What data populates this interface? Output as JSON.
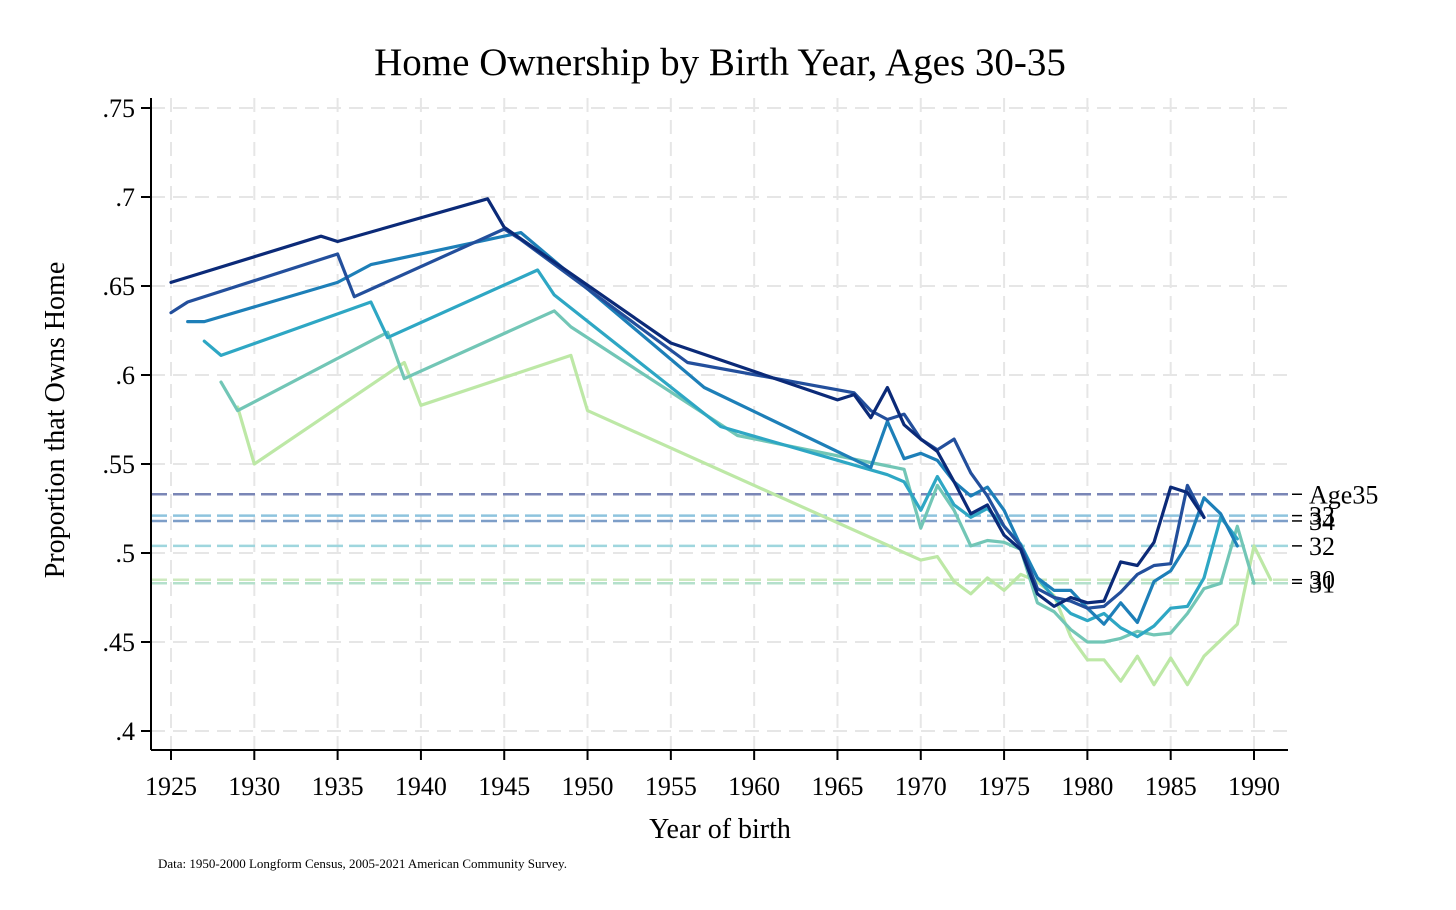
{
  "chart_data": {
    "type": "line",
    "title": "Home Ownership by Birth Year, Ages 30-35",
    "xlabel": "Year of birth",
    "ylabel": "Proportion that Owns Home",
    "note": "Data: 1950-2000 Longform Census, 2005-2021 American Community Survey.",
    "xlim": [
      1925,
      1990
    ],
    "ylim": [
      0.4,
      0.75
    ],
    "x_ticks": [
      1925,
      1930,
      1935,
      1940,
      1945,
      1950,
      1955,
      1960,
      1965,
      1970,
      1975,
      1980,
      1985,
      1990
    ],
    "x_tick_labels": [
      "1925",
      "1930",
      "1935",
      "1940",
      "1945",
      "1950",
      "1955",
      "1960",
      "1965",
      "1970",
      "1975",
      "1980",
      "1985",
      "1990"
    ],
    "y_ticks": [
      0.4,
      0.45,
      0.5,
      0.55,
      0.6,
      0.65,
      0.7,
      0.75
    ],
    "y_tick_labels": [
      ".4",
      ".45",
      ".5",
      ".55",
      ".6",
      ".65",
      ".7",
      ".75"
    ],
    "grid": true,
    "series": [
      {
        "label": "Age35",
        "color": "#0b2a78",
        "reference": 0.533,
        "ref_color": "#7a86b6",
        "points": [
          [
            1925,
            0.652
          ],
          [
            1934,
            0.678
          ],
          [
            1935,
            0.675
          ],
          [
            1944,
            0.699
          ],
          [
            1945,
            0.683
          ],
          [
            1955,
            0.618
          ],
          [
            1965,
            0.586
          ],
          [
            1966,
            0.589
          ],
          [
            1967,
            0.576
          ],
          [
            1968,
            0.593
          ],
          [
            1969,
            0.572
          ],
          [
            1970,
            0.564
          ],
          [
            1971,
            0.557
          ],
          [
            1972,
            0.54
          ],
          [
            1973,
            0.522
          ],
          [
            1974,
            0.527
          ],
          [
            1975,
            0.51
          ],
          [
            1976,
            0.502
          ],
          [
            1977,
            0.477
          ],
          [
            1978,
            0.47
          ],
          [
            1979,
            0.475
          ],
          [
            1980,
            0.472
          ],
          [
            1981,
            0.473
          ],
          [
            1982,
            0.495
          ],
          [
            1983,
            0.493
          ],
          [
            1984,
            0.506
          ],
          [
            1985,
            0.537
          ],
          [
            1986,
            0.534
          ],
          [
            1987,
            0.52
          ]
        ]
      },
      {
        "label": "34",
        "color": "#234f9c",
        "reference": 0.518,
        "ref_color": "#7d9ec8",
        "points": [
          [
            1925,
            0.635
          ],
          [
            1926,
            0.641
          ],
          [
            1935,
            0.668
          ],
          [
            1936,
            0.644
          ],
          [
            1945,
            0.682
          ],
          [
            1946,
            0.676
          ],
          [
            1956,
            0.607
          ],
          [
            1966,
            0.59
          ],
          [
            1967,
            0.58
          ],
          [
            1968,
            0.575
          ],
          [
            1969,
            0.578
          ],
          [
            1970,
            0.564
          ],
          [
            1971,
            0.558
          ],
          [
            1972,
            0.564
          ],
          [
            1973,
            0.545
          ],
          [
            1974,
            0.532
          ],
          [
            1975,
            0.515
          ],
          [
            1976,
            0.504
          ],
          [
            1977,
            0.48
          ],
          [
            1978,
            0.475
          ],
          [
            1979,
            0.473
          ],
          [
            1980,
            0.469
          ],
          [
            1981,
            0.47
          ],
          [
            1982,
            0.478
          ],
          [
            1983,
            0.488
          ],
          [
            1984,
            0.493
          ],
          [
            1985,
            0.494
          ],
          [
            1986,
            0.538
          ],
          [
            1987,
            0.52
          ]
        ]
      },
      {
        "label": "33",
        "color": "#1d7fb8",
        "reference": 0.521,
        "ref_color": "#8ec4de",
        "points": [
          [
            1926,
            0.63
          ],
          [
            1927,
            0.63
          ],
          [
            1935,
            0.652
          ],
          [
            1937,
            0.662
          ],
          [
            1946,
            0.68
          ],
          [
            1957,
            0.593
          ],
          [
            1967,
            0.548
          ],
          [
            1968,
            0.574
          ],
          [
            1969,
            0.553
          ],
          [
            1970,
            0.556
          ],
          [
            1971,
            0.552
          ],
          [
            1972,
            0.54
          ],
          [
            1973,
            0.532
          ],
          [
            1974,
            0.537
          ],
          [
            1975,
            0.524
          ],
          [
            1976,
            0.504
          ],
          [
            1977,
            0.486
          ],
          [
            1978,
            0.479
          ],
          [
            1979,
            0.479
          ],
          [
            1980,
            0.469
          ],
          [
            1981,
            0.46
          ],
          [
            1982,
            0.472
          ],
          [
            1983,
            0.461
          ],
          [
            1984,
            0.484
          ],
          [
            1985,
            0.49
          ],
          [
            1986,
            0.505
          ],
          [
            1987,
            0.531
          ],
          [
            1988,
            0.522
          ],
          [
            1989,
            0.504
          ]
        ]
      },
      {
        "label": "32",
        "color": "#2ea7c4",
        "reference": 0.504,
        "ref_color": "#9fd6de",
        "points": [
          [
            1927,
            0.619
          ],
          [
            1928,
            0.611
          ],
          [
            1937,
            0.641
          ],
          [
            1938,
            0.621
          ],
          [
            1947,
            0.659
          ],
          [
            1948,
            0.645
          ],
          [
            1958,
            0.571
          ],
          [
            1968,
            0.544
          ],
          [
            1969,
            0.54
          ],
          [
            1970,
            0.524
          ],
          [
            1971,
            0.543
          ],
          [
            1972,
            0.527
          ],
          [
            1973,
            0.52
          ],
          [
            1974,
            0.525
          ],
          [
            1975,
            0.515
          ],
          [
            1976,
            0.505
          ],
          [
            1977,
            0.486
          ],
          [
            1978,
            0.475
          ],
          [
            1979,
            0.466
          ],
          [
            1980,
            0.462
          ],
          [
            1981,
            0.466
          ],
          [
            1982,
            0.458
          ],
          [
            1983,
            0.453
          ],
          [
            1984,
            0.459
          ],
          [
            1985,
            0.469
          ],
          [
            1986,
            0.47
          ],
          [
            1987,
            0.486
          ],
          [
            1988,
            0.52
          ],
          [
            1989,
            0.508
          ]
        ]
      },
      {
        "label": "31",
        "color": "#72c6b6",
        "reference": 0.483,
        "ref_color": "#b4e0cc",
        "points": [
          [
            1928,
            0.596
          ],
          [
            1929,
            0.58
          ],
          [
            1938,
            0.624
          ],
          [
            1939,
            0.598
          ],
          [
            1948,
            0.636
          ],
          [
            1949,
            0.627
          ],
          [
            1959,
            0.566
          ],
          [
            1969,
            0.547
          ],
          [
            1970,
            0.514
          ],
          [
            1971,
            0.538
          ],
          [
            1972,
            0.524
          ],
          [
            1973,
            0.504
          ],
          [
            1974,
            0.507
          ],
          [
            1975,
            0.506
          ],
          [
            1976,
            0.502
          ],
          [
            1977,
            0.472
          ],
          [
            1978,
            0.467
          ],
          [
            1979,
            0.457
          ],
          [
            1980,
            0.45
          ],
          [
            1981,
            0.45
          ],
          [
            1982,
            0.452
          ],
          [
            1983,
            0.456
          ],
          [
            1984,
            0.454
          ],
          [
            1985,
            0.455
          ],
          [
            1986,
            0.466
          ],
          [
            1987,
            0.48
          ],
          [
            1988,
            0.483
          ],
          [
            1989,
            0.515
          ],
          [
            1990,
            0.483
          ]
        ]
      },
      {
        "label": "30",
        "color": "#bde8a6",
        "reference": 0.485,
        "ref_color": "#cde9bf",
        "points": [
          [
            1929,
            0.582
          ],
          [
            1930,
            0.55
          ],
          [
            1939,
            0.607
          ],
          [
            1940,
            0.583
          ],
          [
            1949,
            0.611
          ],
          [
            1950,
            0.58
          ],
          [
            1970,
            0.496
          ],
          [
            1971,
            0.498
          ],
          [
            1972,
            0.484
          ],
          [
            1973,
            0.477
          ],
          [
            1974,
            0.486
          ],
          [
            1975,
            0.479
          ],
          [
            1976,
            0.488
          ],
          [
            1977,
            0.484
          ],
          [
            1978,
            0.476
          ],
          [
            1979,
            0.453
          ],
          [
            1980,
            0.44
          ],
          [
            1981,
            0.44
          ],
          [
            1982,
            0.428
          ],
          [
            1983,
            0.442
          ],
          [
            1984,
            0.426
          ],
          [
            1985,
            0.441
          ],
          [
            1986,
            0.426
          ],
          [
            1987,
            0.442
          ],
          [
            1988,
            0.451
          ],
          [
            1989,
            0.46
          ],
          [
            1990,
            0.504
          ],
          [
            1991,
            0.485
          ]
        ]
      }
    ]
  }
}
